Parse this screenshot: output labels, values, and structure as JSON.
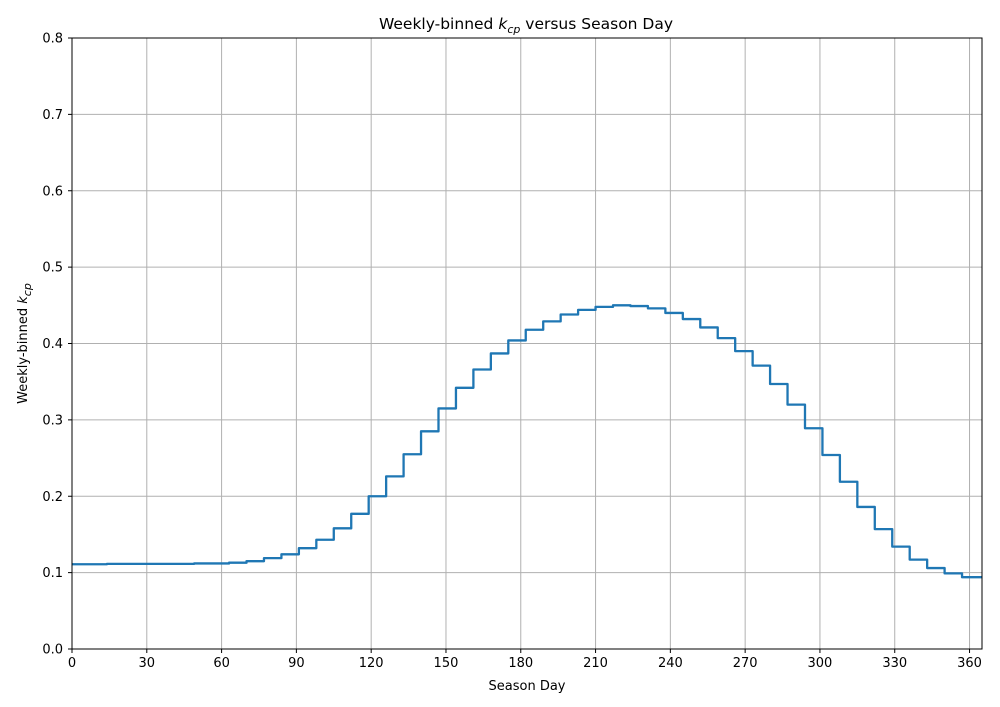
{
  "chart_data": {
    "type": "line",
    "title": {
      "prefix": "Weekly-binned ",
      "k": "k",
      "sub": "cp",
      "suffix": " versus Season Day"
    },
    "xlabel": "Season Day",
    "ylabel": {
      "prefix": "Weekly-binned ",
      "k": "k",
      "sub": "cp"
    },
    "xlim": [
      0,
      365
    ],
    "ylim": [
      0,
      0.8
    ],
    "xticks": [
      0,
      30,
      60,
      90,
      120,
      150,
      180,
      210,
      240,
      270,
      300,
      330,
      360
    ],
    "yticks": [
      0.0,
      0.1,
      0.2,
      0.3,
      0.4,
      0.5,
      0.6,
      0.7,
      0.8
    ],
    "grid": true,
    "line_color": "#1f77b4",
    "series": [
      {
        "bin_width_days": 7,
        "values": [
          0.111,
          0.111,
          0.1115,
          0.1115,
          0.1115,
          0.1115,
          0.1115,
          0.112,
          0.112,
          0.113,
          0.115,
          0.119,
          0.124,
          0.132,
          0.143,
          0.158,
          0.177,
          0.2,
          0.226,
          0.255,
          0.285,
          0.315,
          0.342,
          0.366,
          0.387,
          0.404,
          0.418,
          0.429,
          0.438,
          0.444,
          0.448,
          0.45,
          0.449,
          0.446,
          0.44,
          0.432,
          0.421,
          0.407,
          0.39,
          0.371,
          0.347,
          0.32,
          0.289,
          0.254,
          0.219,
          0.186,
          0.157,
          0.134,
          0.117,
          0.106,
          0.099,
          0.094,
          0.094
        ]
      }
    ]
  }
}
